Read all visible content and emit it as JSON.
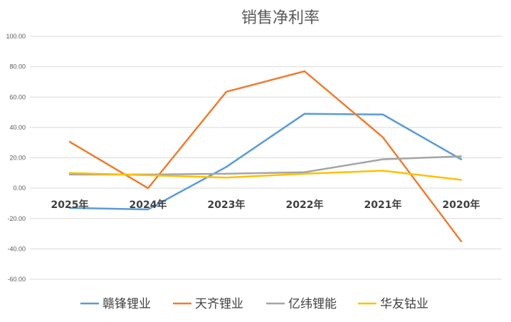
{
  "chart_data": {
    "type": "line",
    "title": "销售净利率",
    "xlabel": "",
    "ylabel": "",
    "categories": [
      "2025年",
      "2024年",
      "2023年",
      "2022年",
      "2021年",
      "2020年"
    ],
    "ylim": [
      -60,
      100
    ],
    "ytick_labels": [
      "100.00",
      "80.00",
      "60.00",
      "40.00",
      "20.00",
      "0.00",
      "-20.00",
      "-40.00",
      "-60.00"
    ],
    "ytick_values": [
      100,
      80,
      60,
      40,
      20,
      0,
      -20,
      -40,
      -60
    ],
    "grid": true,
    "legend_position": "bottom",
    "series": [
      {
        "name": "赣锋锂业",
        "color": "#5B9BD5",
        "values": [
          -13,
          -14,
          14,
          49,
          48.5,
          19
        ]
      },
      {
        "name": "天齐锂业",
        "color": "#ED7D31",
        "values": [
          30.5,
          0,
          63.5,
          77,
          33.5,
          -35
        ]
      },
      {
        "name": "亿纬锂能",
        "color": "#A5A5A5",
        "values": [
          9,
          9,
          9.5,
          10.5,
          19,
          21
        ]
      },
      {
        "name": "华友钴业",
        "color": "#FFC000",
        "values": [
          10,
          8.5,
          7,
          9.5,
          11.5,
          5.5
        ]
      }
    ]
  }
}
